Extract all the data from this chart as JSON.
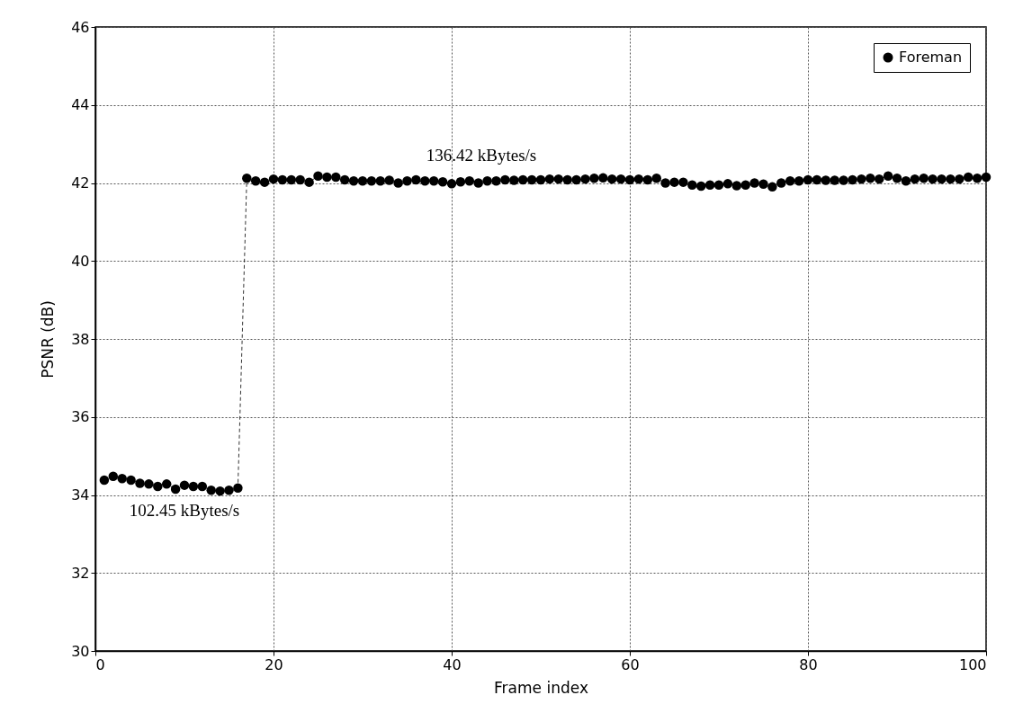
{
  "chart_data": {
    "type": "line",
    "xlabel": "Frame index",
    "ylabel": "PSNR (dB)",
    "x": [
      1,
      2,
      3,
      4,
      5,
      6,
      7,
      8,
      9,
      10,
      11,
      12,
      13,
      14,
      15,
      16,
      17,
      18,
      19,
      20,
      21,
      22,
      23,
      24,
      25,
      26,
      27,
      28,
      29,
      30,
      31,
      32,
      33,
      34,
      35,
      36,
      37,
      38,
      39,
      40,
      41,
      42,
      43,
      44,
      45,
      46,
      47,
      48,
      49,
      50,
      51,
      52,
      53,
      54,
      55,
      56,
      57,
      58,
      59,
      60,
      61,
      62,
      63,
      64,
      65,
      66,
      67,
      68,
      69,
      70,
      71,
      72,
      73,
      74,
      75,
      76,
      77,
      78,
      79,
      80,
      81,
      82,
      83,
      84,
      85,
      86,
      87,
      88,
      89,
      90,
      91,
      92,
      93,
      94,
      95,
      96,
      97,
      98,
      99,
      100
    ],
    "series": [
      {
        "name": "Foreman",
        "color": "#000000",
        "values": [
          34.38,
          34.48,
          34.42,
          34.38,
          34.3,
          34.28,
          34.22,
          34.28,
          34.15,
          34.25,
          34.22,
          34.22,
          34.12,
          34.1,
          34.12,
          34.18,
          42.12,
          42.05,
          42.02,
          42.1,
          42.08,
          42.08,
          42.08,
          42.02,
          42.18,
          42.15,
          42.15,
          42.08,
          42.05,
          42.05,
          42.05,
          42.05,
          42.07,
          42.0,
          42.05,
          42.08,
          42.05,
          42.05,
          42.03,
          41.98,
          42.03,
          42.05,
          42.0,
          42.05,
          42.05,
          42.08,
          42.07,
          42.08,
          42.08,
          42.08,
          42.1,
          42.1,
          42.08,
          42.08,
          42.1,
          42.12,
          42.13,
          42.1,
          42.1,
          42.08,
          42.1,
          42.08,
          42.12,
          42.0,
          42.02,
          42.02,
          41.95,
          41.92,
          41.95,
          41.95,
          41.98,
          41.93,
          41.95,
          42.0,
          41.97,
          41.9,
          42.0,
          42.05,
          42.05,
          42.08,
          42.08,
          42.07,
          42.07,
          42.07,
          42.08,
          42.1,
          42.12,
          42.1,
          42.18,
          42.12,
          42.05,
          42.1,
          42.12,
          42.1,
          42.1,
          42.1,
          42.1,
          42.15,
          42.12,
          42.15
        ]
      }
    ],
    "xlim": [
      0,
      100
    ],
    "ylim": [
      30,
      46
    ],
    "xticks": [
      0,
      20,
      40,
      60,
      80,
      100
    ],
    "yticks": [
      30,
      32,
      34,
      36,
      38,
      40,
      42,
      44,
      46
    ],
    "annotations": [
      "136.42 kBytes/s",
      "102.45 kBytes/s"
    ],
    "grid": true,
    "legend": "top right",
    "marker": "circle",
    "line_style": "dashed"
  }
}
